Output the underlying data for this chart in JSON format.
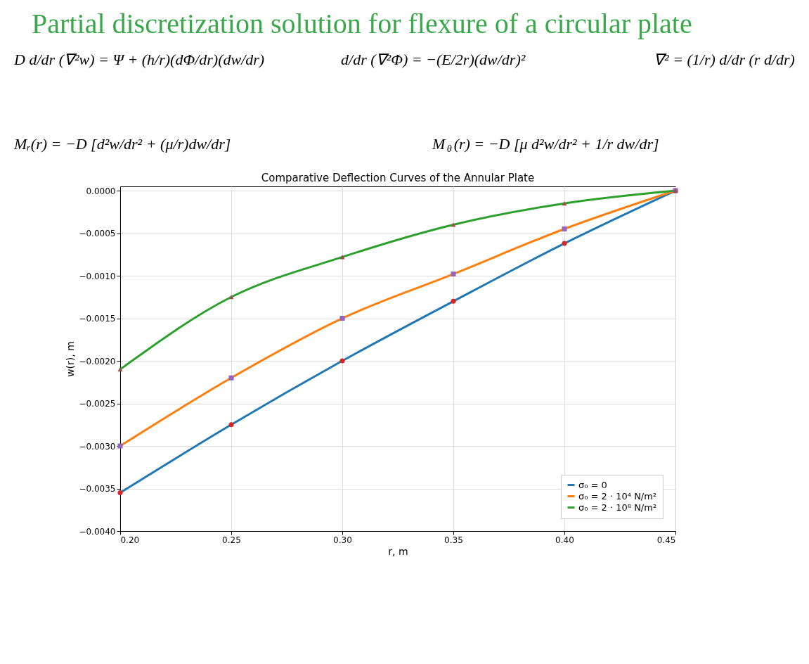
{
  "chart_data": {
    "type": "line",
    "title": "Partial discretization solution for flexure of a circular plate",
    "subtitle": "Comparative Deflection Curves of the Annular Plate",
    "xlabel": "r, m",
    "ylabel": "w(r), m",
    "annotations": [
      "D d/dr (∇²w) = Ψ + (h/r)(dΦ/dr)(dw/dr)",
      "d/dr (∇²Φ) = −(E/2r)(dw/dr)²",
      "∇² = (1/r) d/dr (r d/dr)",
      "Mᵣ(r) = −D [d²w/dr² + (μ/r)dw/dr]",
      "M$_{θ}$(r) = −D [μ d²w/dr² + 1/r dw/dr]"
    ],
    "x": [
      0.2,
      0.25,
      0.3,
      0.35,
      0.4,
      0.45
    ],
    "series": [
      {
        "name": "σ₀ = 0",
        "color": "#1f77b4",
        "marker": "none",
        "values": [
          -0.00355,
          -0.00275,
          -0.002,
          -0.0013,
          -0.00062,
          0
        ]
      },
      {
        "name": "σ₀ = 2 · 10⁴ N/m²",
        "color": "#ff7f0e",
        "marker": "none",
        "values": [
          -0.003,
          -0.0022,
          -0.0015,
          -0.00098,
          -0.00045,
          0
        ]
      },
      {
        "name": "σ₀ = 2 · 10⁸ N/m²",
        "color": "#2ca02c",
        "marker": "none",
        "values": [
          -0.0021,
          -0.00125,
          -0.00078,
          -0.0004,
          -0.00015,
          0
        ]
      },
      {
        "type": "scatter",
        "color": "#d62728",
        "marker": "circle",
        "values": [
          -0.00355,
          -0.00275,
          -0.002,
          -0.0013,
          -0.00062,
          0
        ]
      },
      {
        "type": "scatter",
        "color": "#9467bd",
        "marker": "square",
        "values": [
          -0.003,
          -0.0022,
          -0.0015,
          -0.00098,
          -0.00045,
          0
        ]
      },
      {
        "type": "scatter",
        "color": "#8c564b",
        "marker": "triangle",
        "values": [
          -0.0021,
          -0.00125,
          -0.00078,
          -0.0004,
          -0.00015,
          0
        ]
      }
    ],
    "xlim": [
      0.2,
      0.45
    ],
    "ylim": [
      -0.004,
      5e-05
    ],
    "xticks": [
      {
        "value": 0.2,
        "label": "0.20"
      },
      {
        "value": 0.25,
        "label": "0.25"
      },
      {
        "value": 0.3,
        "label": "0.30"
      },
      {
        "value": 0.35,
        "label": "0.35"
      },
      {
        "value": 0.4,
        "label": "0.40"
      },
      {
        "value": 0.45,
        "label": "0.45"
      }
    ],
    "yticks": [
      {
        "value": 0,
        "label": "0.0000"
      },
      {
        "value": -0.0005,
        "label": "−0.0005"
      },
      {
        "value": -0.001,
        "label": "−0.0010"
      },
      {
        "value": -0.0015,
        "label": "−0.0015"
      },
      {
        "value": -0.002,
        "label": "−0.0020"
      },
      {
        "value": -0.0025,
        "label": "−0.0025"
      },
      {
        "value": -0.003,
        "label": "−0.0030"
      },
      {
        "value": -0.0035,
        "label": "−0.0035"
      },
      {
        "value": -0.004,
        "label": "−0.0040"
      }
    ],
    "grid": true,
    "legend": "bottom right",
    "line_style": "solid"
  }
}
